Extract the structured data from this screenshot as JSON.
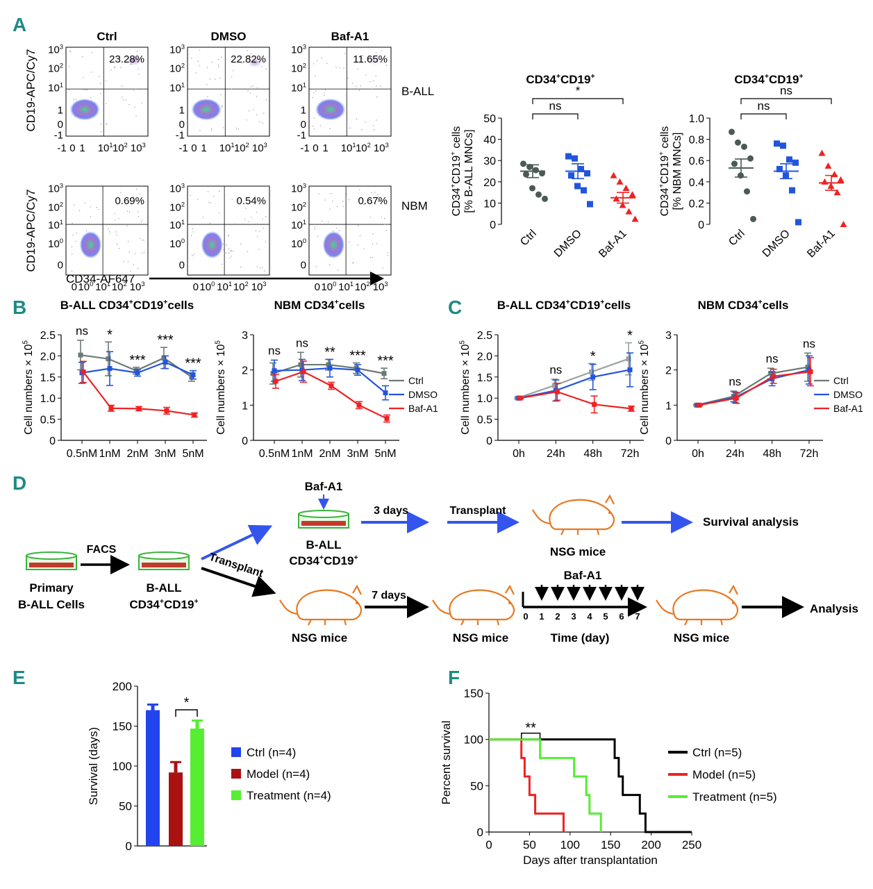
{
  "colors": {
    "panel_letter": "#1e8a86",
    "ctrl_gray": "#4a5a55",
    "dmso_blue": "#2255dd",
    "baf_red": "#ee2222",
    "ctrl_blue": "#2244ee",
    "model_red": "#aa1111",
    "treat_green": "#55ee33",
    "flow_purple": "#8866cc",
    "arrow_blue": "#3355ee"
  },
  "panels": {
    "A": "A",
    "B": "B",
    "C": "C",
    "D": "D",
    "E": "E",
    "F": "F"
  },
  "chart_data": [
    {
      "id": "A_flow",
      "type": "scatter",
      "conditions": [
        "Ctrl",
        "DMSO",
        "Baf-A1"
      ],
      "rows": [
        "B-ALL",
        "NBM"
      ],
      "percent_upper_right": [
        [
          "23.28%",
          "22.82%",
          "11.65%"
        ],
        [
          "0.69%",
          "0.54%",
          "0.67%"
        ]
      ],
      "ylabel": "CD19-APC/Cy7",
      "xlabel": "CD34-AF647",
      "y_ticks_row1": [
        "10^3",
        "10^2",
        "10^1",
        "1",
        "0",
        "-1"
      ],
      "x_ticks_row1": [
        "-1",
        "0",
        "1",
        "10^1",
        "10^2",
        "10^3"
      ],
      "y_ticks_row2": [
        "10^3",
        "10^2",
        "10^1",
        "10^0",
        "0"
      ],
      "x_ticks_row2": [
        "0",
        "10^0",
        "10^1",
        "10^2",
        "10^3"
      ]
    },
    {
      "id": "A_dot_ball",
      "type": "scatter",
      "title": "CD34+CD19+",
      "ylabel_line1": "CD34+CD19+ cells",
      "ylabel_line2": "[% B-ALL MNCs]",
      "categories": [
        "Ctrl",
        "DMSO",
        "Baf-A1"
      ],
      "ylim": [
        0,
        50
      ],
      "yticks": [
        0,
        10,
        20,
        30,
        40,
        50
      ],
      "points": [
        [
          28.5,
          27,
          25.5,
          24,
          23.5,
          17,
          14,
          12
        ],
        [
          32,
          31,
          26,
          24,
          23,
          18,
          16,
          9.5
        ],
        [
          23,
          20,
          17,
          14,
          12,
          9,
          6,
          2.5
        ]
      ],
      "mean": [
        25,
        25,
        12.5
      ],
      "sem": [
        3,
        3.5,
        2.5
      ],
      "sig": [
        {
          "a": 0,
          "b": 1,
          "label": "ns"
        },
        {
          "a": 0,
          "b": 2,
          "label": "*"
        }
      ]
    },
    {
      "id": "A_dot_nbm",
      "type": "scatter",
      "title": "CD34+CD19+",
      "ylabel_line1": "CD34+CD19+ cells",
      "ylabel_line2": "[% NBM MNCs]",
      "categories": [
        "Ctrl",
        "DMSO",
        "Baf-A1"
      ],
      "ylim": [
        0,
        1.0
      ],
      "yticks": [
        "0",
        "0.2",
        "0.4",
        "0.6",
        "0.8",
        "1.0"
      ],
      "points": [
        [
          0.87,
          0.77,
          0.73,
          0.62,
          0.57,
          0.46,
          0.31,
          0.05
        ],
        [
          0.76,
          0.74,
          0.61,
          0.58,
          0.52,
          0.46,
          0.32,
          0.02
        ],
        [
          0.67,
          0.55,
          0.47,
          0.42,
          0.4,
          0.36,
          0.3,
          0.0
        ]
      ],
      "mean": [
        0.53,
        0.5,
        0.39
      ],
      "sem": [
        0.085,
        0.07,
        0.07
      ],
      "sig": [
        {
          "a": 0,
          "b": 1,
          "label": "ns"
        },
        {
          "a": 0,
          "b": 2,
          "label": "ns"
        }
      ]
    },
    {
      "id": "B_ball",
      "type": "line",
      "title": "B-ALL CD34+CD19+cells",
      "ylabel": "Cell numbers × 10^5",
      "categories": [
        "0.5nM",
        "1nM",
        "2nM",
        "3nM",
        "5nM"
      ],
      "ylim": [
        0,
        2.5
      ],
      "yticks": [
        "0",
        "0.5",
        "1.0",
        "1.5",
        "2.0",
        "2.5"
      ],
      "series": [
        {
          "name": "Ctrl",
          "values": [
            2.02,
            1.93,
            1.65,
            1.95,
            1.5
          ],
          "err": [
            0.35,
            0.4,
            0.08,
            0.25,
            0.1
          ]
        },
        {
          "name": "DMSO",
          "values": [
            1.6,
            1.7,
            1.6,
            1.85,
            1.55
          ],
          "err": [
            0.25,
            0.4,
            0.08,
            0.15,
            0.1
          ]
        },
        {
          "name": "Baf-A1",
          "values": [
            1.62,
            0.76,
            0.75,
            0.7,
            0.6
          ],
          "err": [
            0.25,
            0.07,
            0.05,
            0.08,
            0.05
          ]
        }
      ],
      "sig": [
        "ns",
        "*",
        "***",
        "***",
        "***"
      ]
    },
    {
      "id": "B_nbm",
      "type": "line",
      "title": "NBM CD34+cells",
      "ylabel": "Cell numbers × 10^5",
      "categories": [
        "0.5nM",
        "1nM",
        "2nM",
        "3nM",
        "5nM"
      ],
      "ylim": [
        0,
        3
      ],
      "yticks": [
        "0",
        "1",
        "2",
        "3"
      ],
      "series": [
        {
          "name": "Ctrl",
          "values": [
            1.9,
            2.15,
            2.15,
            2.05,
            1.9
          ],
          "err": [
            0.3,
            0.35,
            0.15,
            0.15,
            0.15
          ]
        },
        {
          "name": "DMSO",
          "values": [
            1.98,
            2.0,
            2.05,
            2.0,
            1.35
          ],
          "err": [
            0.3,
            0.3,
            0.25,
            0.15,
            0.2
          ]
        },
        {
          "name": "Baf-A1",
          "values": [
            1.68,
            1.95,
            1.55,
            1.0,
            0.62
          ],
          "err": [
            0.2,
            0.3,
            0.1,
            0.1,
            0.1
          ]
        }
      ],
      "sig": [
        "ns",
        "ns",
        "**",
        "***",
        "***"
      ],
      "legend": [
        "Ctrl",
        "DMSO",
        "Baf-A1"
      ]
    },
    {
      "id": "C_ball",
      "type": "line",
      "title": "B-ALL CD34+CD19+cells",
      "ylabel": "Cell numbers × 10^5",
      "categories": [
        "0h",
        "24h",
        "48h",
        "72h"
      ],
      "ylim": [
        0,
        2.5
      ],
      "yticks": [
        "0",
        "0.5",
        "1.0",
        "1.5",
        "2.0",
        "2.5"
      ],
      "series": [
        {
          "name": "Ctrl",
          "values": [
            1.0,
            1.3,
            1.62,
            1.93
          ],
          "err": [
            0.02,
            0.15,
            0.2,
            0.38
          ]
        },
        {
          "name": "DMSO",
          "values": [
            1.0,
            1.18,
            1.5,
            1.67
          ],
          "err": [
            0.02,
            0.25,
            0.3,
            0.4
          ]
        },
        {
          "name": "Baf-A1",
          "values": [
            1.0,
            1.15,
            0.85,
            0.75
          ],
          "err": [
            0.02,
            0.2,
            0.2,
            0.06
          ]
        }
      ],
      "sig": [
        "",
        "ns",
        "*",
        "*"
      ]
    },
    {
      "id": "C_nbm",
      "type": "line",
      "title": "NBM CD34+cells",
      "ylabel": "Cell numbers × 10^5",
      "categories": [
        "0h",
        "24h",
        "48h",
        "72h"
      ],
      "ylim": [
        0,
        3
      ],
      "yticks": [
        "0",
        "1",
        "2",
        "3"
      ],
      "series": [
        {
          "name": "Ctrl",
          "values": [
            1.0,
            1.25,
            1.9,
            2.08
          ],
          "err": [
            0.02,
            0.15,
            0.15,
            0.4
          ]
        },
        {
          "name": "DMSO",
          "values": [
            1.0,
            1.22,
            1.75,
            2.0
          ],
          "err": [
            0.02,
            0.15,
            0.2,
            0.4
          ]
        },
        {
          "name": "Baf-A1",
          "values": [
            1.0,
            1.2,
            1.82,
            1.95
          ],
          "err": [
            0.02,
            0.15,
            0.2,
            0.4
          ]
        }
      ],
      "sig": [
        "",
        "ns",
        "ns",
        "ns"
      ],
      "legend": [
        "Ctrl",
        "DMSO",
        "Baf-A1"
      ]
    },
    {
      "id": "E",
      "type": "bar",
      "ylabel": "Survival (days)",
      "ylim": [
        0,
        200
      ],
      "yticks": [
        0,
        50,
        100,
        150,
        200
      ],
      "categories": [
        "Ctrl (n=4)",
        "Model (n=4)",
        "Treatment (n=4)"
      ],
      "values": [
        170,
        92,
        147
      ],
      "err": [
        7,
        13,
        10
      ],
      "sig": [
        {
          "a": 1,
          "b": 2,
          "label": "*"
        }
      ]
    },
    {
      "id": "F",
      "type": "line",
      "xlabel": "Days after transplantation",
      "ylabel": "Percent survival",
      "xlim": [
        0,
        250
      ],
      "ylim": [
        0,
        150
      ],
      "xticks": [
        0,
        50,
        100,
        150,
        200,
        250
      ],
      "yticks": [
        0,
        50,
        100,
        150
      ],
      "series": [
        {
          "name": "Ctrl (n=5)",
          "steps": [
            [
              0,
              100
            ],
            [
              155,
              100
            ],
            [
              155,
              80
            ],
            [
              160,
              80
            ],
            [
              160,
              60
            ],
            [
              165,
              60
            ],
            [
              165,
              40
            ],
            [
              186,
              40
            ],
            [
              186,
              20
            ],
            [
              193,
              20
            ],
            [
              193,
              0
            ],
            [
              250,
              0
            ]
          ]
        },
        {
          "name": "Model (n=5)",
          "steps": [
            [
              0,
              100
            ],
            [
              40,
              100
            ],
            [
              40,
              80
            ],
            [
              44,
              80
            ],
            [
              44,
              60
            ],
            [
              50,
              60
            ],
            [
              50,
              40
            ],
            [
              57,
              40
            ],
            [
              57,
              20
            ],
            [
              92,
              20
            ],
            [
              92,
              0
            ]
          ]
        },
        {
          "name": "Treatment (n=5)",
          "steps": [
            [
              0,
              100
            ],
            [
              63,
              100
            ],
            [
              63,
              80
            ],
            [
              105,
              80
            ],
            [
              105,
              60
            ],
            [
              120,
              60
            ],
            [
              120,
              40
            ],
            [
              124,
              40
            ],
            [
              124,
              20
            ],
            [
              138,
              20
            ],
            [
              138,
              0
            ]
          ]
        }
      ],
      "sig": {
        "a": 40,
        "b": 63,
        "label": "**"
      }
    }
  ],
  "diagram": {
    "primary_line1": "Primary",
    "primary_line2": "B-ALL Cells",
    "facs": "FACS",
    "ball_line1": "B-ALL",
    "ball_line2": "CD34+CD19+",
    "baf": "Baf-A1",
    "three_days": "3 days",
    "transplant": "Transplant",
    "nsg": "NSG mice",
    "survival_analysis": "Survival analysis",
    "transplant_diag": "Transplant",
    "seven_days": "7 days",
    "timeline_title": "Baf-A1",
    "timeline_axis": "Time (day)",
    "timeline_days": [
      "0",
      "1",
      "2",
      "3",
      "4",
      "5",
      "6",
      "7"
    ],
    "analysis": "Analysis"
  }
}
